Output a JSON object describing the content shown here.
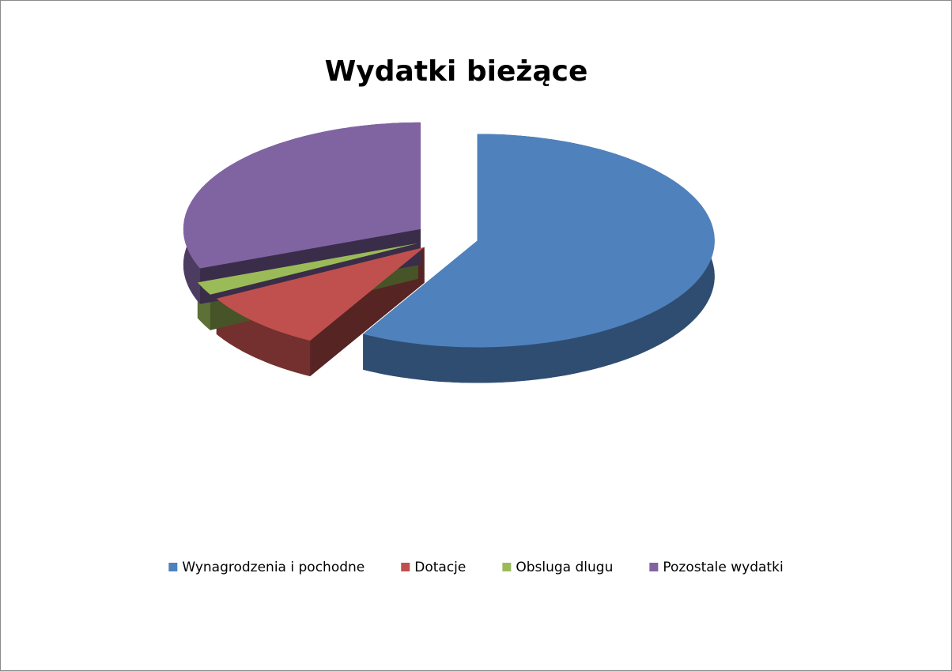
{
  "chart_data": {
    "type": "pie3d",
    "title": "Wydatki bieżące",
    "categories": [
      "Wynagrodzenia i pochodne",
      "Dotacje",
      "Obsluga dlugu",
      "Pozostale wydatki"
    ],
    "values": [
      58,
      9,
      2,
      31
    ],
    "colors": [
      "#4f81bd",
      "#c0504d",
      "#9bbb59",
      "#8064a2"
    ],
    "legend": "bottom"
  }
}
